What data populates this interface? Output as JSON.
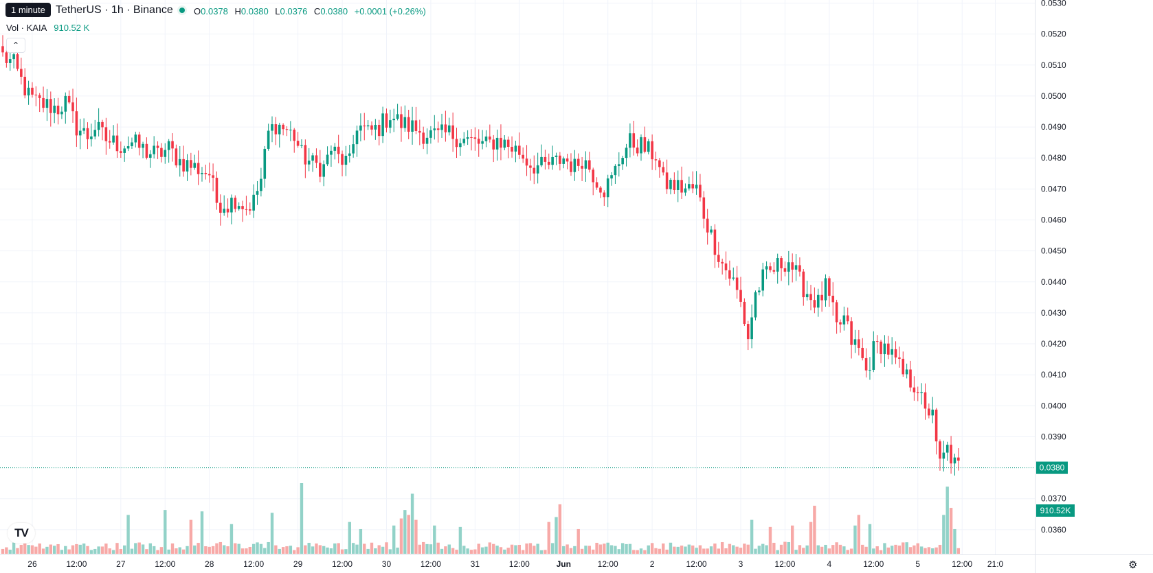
{
  "header": {
    "tooltip": "1 minute",
    "symbol": "TetherUS · 1h · Binance",
    "ohlc": {
      "o_label": "O",
      "o": "0.0378",
      "h_label": "H",
      "h": "0.0380",
      "l_label": "L",
      "l": "0.0376",
      "c_label": "C",
      "c": "0.0380",
      "change": "+0.0001 (+0.26%)"
    },
    "volume_label": "Vol · KAIA",
    "volume_value": "910.52 K"
  },
  "colors": {
    "up": "#089981",
    "down": "#f23645",
    "up_volume": "#92d2c8",
    "down_volume": "#f7a9a7",
    "grid": "#f0f3fa",
    "axis_text": "#131722",
    "badge_bg": "#089981"
  },
  "chart_data": {
    "type": "candlestick",
    "title": "",
    "xlabel": "",
    "ylabel": "",
    "ylim": [
      0.0352,
      0.0531
    ],
    "y_ticks": [
      "0.0530",
      "0.0520",
      "0.0510",
      "0.0500",
      "0.0490",
      "0.0480",
      "0.0470",
      "0.0460",
      "0.0450",
      "0.0440",
      "0.0430",
      "0.0420",
      "0.0410",
      "0.0400",
      "0.0390",
      "0.0370",
      "0.0360"
    ],
    "x_ticks": [
      {
        "label": "26",
        "bar": 8
      },
      {
        "label": "12:00",
        "bar": 20
      },
      {
        "label": "27",
        "bar": 32
      },
      {
        "label": "12:00",
        "bar": 44
      },
      {
        "label": "28",
        "bar": 56
      },
      {
        "label": "12:00",
        "bar": 68
      },
      {
        "label": "29",
        "bar": 80
      },
      {
        "label": "12:00",
        "bar": 92
      },
      {
        "label": "30",
        "bar": 104
      },
      {
        "label": "12:00",
        "bar": 116
      },
      {
        "label": "31",
        "bar": 128
      },
      {
        "label": "12:00",
        "bar": 140
      },
      {
        "label": "Jun",
        "bar": 152
      },
      {
        "label": "12:00",
        "bar": 164
      },
      {
        "label": "2",
        "bar": 176
      },
      {
        "label": "12:00",
        "bar": 188
      },
      {
        "label": "3",
        "bar": 200
      },
      {
        "label": "12:00",
        "bar": 212
      },
      {
        "label": "4",
        "bar": 224
      },
      {
        "label": "12:00",
        "bar": 236
      },
      {
        "label": "5",
        "bar": 248
      },
      {
        "label": "12:00",
        "bar": 260
      },
      {
        "label": "21:0",
        "bar": 269
      }
    ],
    "last_price": 0.038,
    "last_price_label": "0.0380",
    "last_volume_label": "910.52K",
    "anchors": [
      [
        0,
        0.0513
      ],
      [
        3,
        0.051
      ],
      [
        5,
        0.0505
      ],
      [
        7,
        0.05
      ],
      [
        9,
        0.0498
      ],
      [
        12,
        0.0497
      ],
      [
        15,
        0.0496
      ],
      [
        17,
        0.0498
      ],
      [
        20,
        0.049
      ],
      [
        23,
        0.0487
      ],
      [
        25,
        0.049
      ],
      [
        28,
        0.0486
      ],
      [
        32,
        0.0484
      ],
      [
        35,
        0.0485
      ],
      [
        39,
        0.0482
      ],
      [
        42,
        0.0481
      ],
      [
        45,
        0.0483
      ],
      [
        48,
        0.0479
      ],
      [
        52,
        0.0477
      ],
      [
        56,
        0.0475
      ],
      [
        58,
        0.0466
      ],
      [
        61,
        0.0465
      ],
      [
        63,
        0.0467
      ],
      [
        66,
        0.0464
      ],
      [
        68,
        0.0466
      ],
      [
        70,
        0.0473
      ],
      [
        72,
        0.0488
      ],
      [
        74,
        0.0491
      ],
      [
        77,
        0.0489
      ],
      [
        79,
        0.0487
      ],
      [
        81,
        0.0481
      ],
      [
        84,
        0.0478
      ],
      [
        87,
        0.0477
      ],
      [
        89,
        0.0483
      ],
      [
        91,
        0.048
      ],
      [
        94,
        0.0478
      ],
      [
        96,
        0.0491
      ],
      [
        99,
        0.0488
      ],
      [
        102,
        0.049
      ],
      [
        105,
        0.0494
      ],
      [
        108,
        0.0491
      ],
      [
        111,
        0.049
      ],
      [
        114,
        0.0488
      ],
      [
        118,
        0.0487
      ],
      [
        121,
        0.0488
      ],
      [
        125,
        0.0486
      ],
      [
        128,
        0.0485
      ],
      [
        131,
        0.0484
      ],
      [
        134,
        0.0486
      ],
      [
        137,
        0.0484
      ],
      [
        140,
        0.0482
      ],
      [
        143,
        0.0478
      ],
      [
        146,
        0.0477
      ],
      [
        149,
        0.0478
      ],
      [
        152,
        0.048
      ],
      [
        155,
        0.0477
      ],
      [
        157,
        0.048
      ],
      [
        159,
        0.0477
      ],
      [
        161,
        0.0473
      ],
      [
        163,
        0.047
      ],
      [
        165,
        0.0473
      ],
      [
        168,
        0.0482
      ],
      [
        170,
        0.0485
      ],
      [
        173,
        0.0484
      ],
      [
        175,
        0.0482
      ],
      [
        177,
        0.0481
      ],
      [
        179,
        0.0472
      ],
      [
        182,
        0.0471
      ],
      [
        185,
        0.047
      ],
      [
        188,
        0.047
      ],
      [
        190,
        0.0462
      ],
      [
        192,
        0.0455
      ],
      [
        195,
        0.0446
      ],
      [
        198,
        0.044
      ],
      [
        200,
        0.0433
      ],
      [
        202,
        0.0422
      ],
      [
        204,
        0.0436
      ],
      [
        206,
        0.0441
      ],
      [
        208,
        0.0443
      ],
      [
        211,
        0.0446
      ],
      [
        213,
        0.0447
      ],
      [
        216,
        0.044
      ],
      [
        219,
        0.0435
      ],
      [
        221,
        0.0433
      ],
      [
        223,
        0.0438
      ],
      [
        225,
        0.043
      ],
      [
        226,
        0.0425
      ],
      [
        228,
        0.0428
      ],
      [
        230,
        0.0421
      ],
      [
        232,
        0.0418
      ],
      [
        234,
        0.0411
      ],
      [
        236,
        0.0418
      ],
      [
        238,
        0.042
      ],
      [
        240,
        0.0418
      ],
      [
        242,
        0.0414
      ],
      [
        244,
        0.041
      ],
      [
        246,
        0.0408
      ],
      [
        248,
        0.0406
      ],
      [
        250,
        0.0397
      ],
      [
        252,
        0.04
      ],
      [
        253,
        0.0386
      ],
      [
        254,
        0.0381
      ],
      [
        256,
        0.0386
      ],
      [
        258,
        0.0381
      ],
      [
        259,
        0.038
      ]
    ],
    "volume_spikes": [
      [
        34,
        0.55
      ],
      [
        44,
        0.62
      ],
      [
        51,
        0.48
      ],
      [
        54,
        0.6
      ],
      [
        62,
        0.42
      ],
      [
        73,
        0.58
      ],
      [
        81,
        1.0
      ],
      [
        94,
        0.45
      ],
      [
        97,
        0.35
      ],
      [
        106,
        0.4
      ],
      [
        108,
        0.5
      ],
      [
        109,
        0.62
      ],
      [
        110,
        0.55
      ],
      [
        111,
        0.85
      ],
      [
        112,
        0.48
      ],
      [
        117,
        0.4
      ],
      [
        124,
        0.38
      ],
      [
        148,
        0.45
      ],
      [
        150,
        0.52
      ],
      [
        151,
        0.7
      ],
      [
        156,
        0.35
      ],
      [
        203,
        0.48
      ],
      [
        208,
        0.38
      ],
      [
        214,
        0.4
      ],
      [
        219,
        0.45
      ],
      [
        220,
        0.68
      ],
      [
        231,
        0.4
      ],
      [
        232,
        0.55
      ],
      [
        235,
        0.42
      ],
      [
        255,
        0.55
      ],
      [
        256,
        0.95
      ],
      [
        257,
        0.65
      ],
      [
        258,
        0.35
      ]
    ]
  }
}
